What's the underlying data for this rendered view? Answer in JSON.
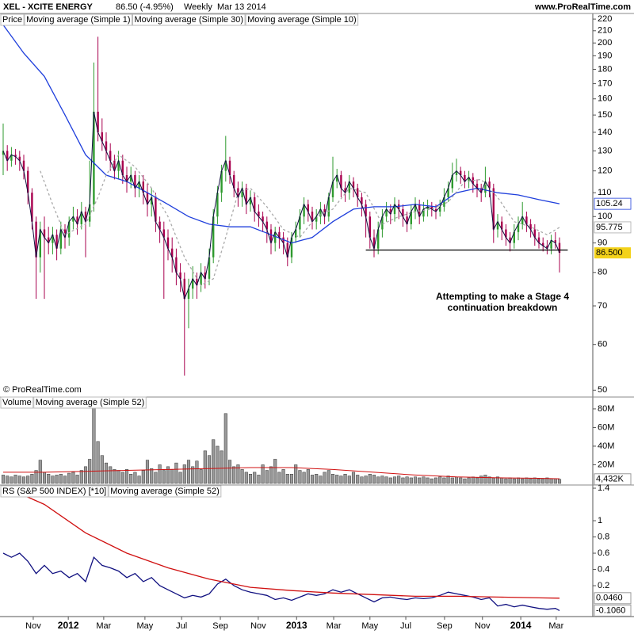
{
  "header": {
    "symbol": "XEL - XCITE ENERGY",
    "quote": "86.50 (-4.95%)",
    "period": "Weekly  Mar 13 2014",
    "site": "www.ProRealTime.com",
    "copyright": "© ProRealTime.com"
  },
  "chart_data": [
    {
      "type": "candlestick",
      "log_scale": true,
      "legend_label": "Price",
      "close_line": {
        "name": "Moving average (Simple 1)",
        "color": "#101040"
      },
      "up_color": "#2e9a2e",
      "down_color": "#a8004e",
      "ylim": [
        48.8,
        225
      ],
      "yticks": [
        50,
        60,
        70,
        80,
        90,
        100,
        110,
        120,
        130,
        140,
        150,
        160,
        170,
        180,
        190,
        200,
        210,
        220
      ],
      "open": [
        128,
        130,
        125,
        128,
        127,
        125,
        120,
        110,
        98,
        85,
        95,
        92,
        90,
        93,
        88,
        95,
        92,
        98,
        100,
        97,
        102,
        98,
        105,
        152,
        140,
        135,
        130,
        125,
        120,
        125,
        118,
        115,
        118,
        112,
        115,
        110,
        105,
        108,
        98,
        95,
        92,
        88,
        85,
        80,
        78,
        72,
        75,
        78,
        76,
        80,
        78,
        85,
        100,
        110,
        120,
        125,
        118,
        112,
        108,
        112,
        105,
        108,
        102,
        100,
        98,
        95,
        90,
        94,
        92,
        90,
        85,
        92,
        95,
        100,
        105,
        102,
        98,
        100,
        103,
        100,
        108,
        115,
        118,
        112,
        110,
        115,
        112,
        108,
        105,
        100,
        92,
        88,
        95,
        100,
        103,
        101,
        105,
        103,
        100,
        97,
        102,
        105,
        100,
        103,
        104,
        103,
        102,
        104,
        108,
        112,
        118,
        120,
        118,
        115,
        117,
        114,
        112,
        110,
        115,
        112,
        95,
        98,
        95,
        92,
        90,
        94,
        97,
        100,
        97,
        95,
        92,
        90,
        89,
        88,
        91,
        90
      ],
      "high": [
        145,
        133,
        132,
        131,
        130,
        128,
        122,
        112,
        100,
        98,
        100,
        96,
        96,
        95,
        98,
        97,
        100,
        104,
        103,
        106,
        104,
        125,
        185,
        205,
        148,
        140,
        134,
        128,
        130,
        128,
        122,
        122,
        120,
        118,
        118,
        114,
        112,
        110,
        100,
        98,
        95,
        92,
        88,
        83,
        80,
        78,
        82,
        80,
        83,
        82,
        88,
        103,
        113,
        123,
        138,
        127,
        120,
        115,
        115,
        114,
        111,
        110,
        105,
        102,
        100,
        97,
        96,
        96,
        94,
        92,
        94,
        98,
        103,
        108,
        107,
        104,
        103,
        106,
        105,
        110,
        127,
        121,
        120,
        115,
        118,
        117,
        114,
        110,
        107,
        102,
        95,
        98,
        103,
        106,
        105,
        108,
        107,
        105,
        102,
        105,
        108,
        107,
        106,
        107,
        106,
        105,
        107,
        112,
        115,
        124,
        126,
        122,
        120,
        120,
        119,
        116,
        114,
        122,
        117,
        114,
        101,
        100,
        97,
        94,
        97,
        100,
        106,
        102,
        99,
        97,
        94,
        92,
        91,
        93,
        94,
        92
      ],
      "low": [
        118,
        120,
        122,
        123,
        120,
        116,
        105,
        95,
        72,
        80,
        72,
        86,
        86,
        84,
        86,
        88,
        89,
        95,
        93,
        95,
        85,
        96,
        102,
        135,
        130,
        125,
        120,
        116,
        116,
        114,
        110,
        112,
        108,
        108,
        105,
        100,
        100,
        94,
        90,
        72,
        84,
        80,
        76,
        74,
        53,
        64,
        72,
        72,
        74,
        75,
        76,
        83,
        97,
        106,
        115,
        114,
        108,
        104,
        104,
        101,
        102,
        98,
        96,
        94,
        90,
        86,
        87,
        88,
        86,
        82,
        83,
        90,
        92,
        97,
        98,
        95,
        95,
        97,
        97,
        98,
        106,
        112,
        108,
        106,
        107,
        108,
        104,
        100,
        92,
        88,
        85,
        86,
        92,
        98,
        97,
        98,
        99,
        96,
        94,
        95,
        99,
        97,
        98,
        100,
        100,
        99,
        100,
        102,
        106,
        110,
        115,
        114,
        112,
        112,
        110,
        108,
        106,
        108,
        108,
        90,
        92,
        91,
        89,
        87,
        88,
        91,
        95,
        94,
        92,
        89,
        88,
        87,
        86,
        86,
        88,
        80
      ],
      "close": [
        130,
        125,
        128,
        127,
        125,
        120,
        110,
        98,
        85,
        95,
        92,
        90,
        93,
        88,
        95,
        92,
        98,
        100,
        97,
        102,
        98,
        105,
        152,
        140,
        135,
        130,
        125,
        120,
        125,
        118,
        115,
        118,
        112,
        115,
        110,
        105,
        108,
        98,
        95,
        92,
        88,
        85,
        80,
        78,
        72,
        75,
        78,
        76,
        80,
        78,
        85,
        100,
        110,
        120,
        125,
        118,
        112,
        108,
        112,
        105,
        108,
        102,
        100,
        98,
        95,
        90,
        94,
        92,
        90,
        85,
        92,
        95,
        100,
        105,
        102,
        98,
        100,
        103,
        100,
        108,
        115,
        118,
        112,
        110,
        115,
        112,
        108,
        105,
        100,
        92,
        88,
        95,
        100,
        103,
        101,
        105,
        103,
        100,
        97,
        102,
        105,
        100,
        103,
        104,
        103,
        102,
        104,
        108,
        112,
        118,
        120,
        118,
        115,
        117,
        114,
        112,
        110,
        115,
        112,
        95,
        98,
        95,
        92,
        90,
        94,
        97,
        100,
        97,
        95,
        92,
        90,
        89,
        88,
        91,
        90,
        86.5
      ],
      "close_last_label": "86.500",
      "series": [
        {
          "name": "Moving average (Simple 30)",
          "color": "#1f3fdc",
          "x": [
            0,
            5,
            10,
            15,
            20,
            25,
            30,
            35,
            40,
            45,
            50,
            55,
            60,
            65,
            70,
            75,
            80,
            85,
            90,
            95,
            100,
            105,
            110,
            115,
            120,
            125,
            130,
            135
          ],
          "values": [
            215,
            192,
            175,
            150,
            128,
            118,
            115,
            110,
            105,
            100,
            97,
            96,
            96,
            93,
            90,
            92,
            98,
            103,
            104,
            104,
            105,
            104,
            110,
            112,
            110,
            109,
            107,
            105.24
          ]
        },
        {
          "name": "Moving average (Simple 10)",
          "color": "#aaaaaa",
          "dashed": true,
          "x": [
            9,
            12,
            15,
            20,
            23,
            25,
            28,
            32,
            36,
            40,
            44,
            48,
            51,
            54,
            57,
            60,
            64,
            68,
            72,
            76,
            80,
            84,
            88,
            92,
            96,
            100,
            104,
            108,
            112,
            116,
            120,
            124,
            128,
            132,
            135
          ],
          "values": [
            120,
            105,
            93,
            97,
            108,
            118,
            128,
            122,
            112,
            100,
            85,
            76,
            78,
            92,
            110,
            112,
            104,
            95,
            92,
            100,
            103,
            112,
            110,
            97,
            100,
            102,
            103,
            106,
            115,
            116,
            108,
            98,
            96,
            93,
            95.775
          ]
        }
      ],
      "support": {
        "value": 87.5,
        "x": [
          88,
          137
        ]
      },
      "annotation": [
        "Attempting to make a Stage 4",
        "continuation breakdown"
      ]
    },
    {
      "type": "bar",
      "legend_label": "Volume",
      "color": "#9a9a9a",
      "ylim": [
        0,
        91
      ],
      "yticks": [
        {
          "value": 20,
          "label": "20M"
        },
        {
          "value": 40,
          "label": "40M"
        },
        {
          "value": 60,
          "label": "60M"
        },
        {
          "value": 80,
          "label": "80M"
        }
      ],
      "values": [
        9,
        8,
        7,
        9,
        8,
        7,
        8,
        10,
        14,
        25,
        12,
        10,
        8,
        9,
        10,
        8,
        11,
        12,
        9,
        14,
        18,
        26,
        82,
        45,
        30,
        22,
        18,
        15,
        14,
        12,
        15,
        10,
        12,
        8,
        14,
        25,
        16,
        12,
        20,
        14,
        18,
        15,
        22,
        12,
        20,
        25,
        18,
        24,
        15,
        35,
        30,
        47,
        40,
        35,
        75,
        25,
        18,
        20,
        15,
        12,
        10,
        12,
        9,
        20,
        14,
        18,
        26,
        12,
        15,
        10,
        10,
        20,
        14,
        12,
        15,
        9,
        10,
        8,
        12,
        14,
        10,
        9,
        8,
        10,
        8,
        12,
        9,
        7,
        8,
        10,
        9,
        7,
        8,
        7,
        6,
        7,
        8,
        6,
        7,
        6,
        7,
        6,
        7,
        6,
        5,
        6,
        7,
        6,
        8,
        6,
        7,
        6,
        5,
        6,
        7,
        6,
        8,
        9,
        7,
        6,
        7,
        6,
        5,
        6,
        5,
        6,
        5,
        6,
        5,
        6,
        5,
        5,
        6,
        5,
        5,
        4.432
      ],
      "last_label": "4,432K",
      "series": [
        {
          "name": "Moving average (Simple 52)",
          "color": "#d01010",
          "x": [
            0,
            10,
            20,
            30,
            40,
            50,
            60,
            70,
            80,
            90,
            100,
            110,
            120,
            130,
            135
          ],
          "values": [
            12,
            12,
            13,
            14,
            15,
            16,
            17,
            17,
            15,
            12,
            9,
            7,
            6,
            5.5,
            5
          ]
        }
      ]
    },
    {
      "type": "line",
      "ylim": [
        -0.18,
        1.41
      ],
      "yticks": [
        0.2,
        0.4,
        0.6,
        0.8,
        1,
        1.4
      ],
      "series": [
        {
          "name": "RS (S&P 500 INDEX) [*10]",
          "color": "#101080",
          "x": [
            0,
            2,
            4,
            6,
            8,
            10,
            12,
            14,
            16,
            18,
            20,
            22,
            24,
            26,
            28,
            30,
            32,
            34,
            36,
            38,
            40,
            42,
            44,
            46,
            48,
            50,
            52,
            54,
            56,
            58,
            60,
            62,
            64,
            66,
            68,
            70,
            72,
            74,
            76,
            78,
            80,
            82,
            84,
            86,
            88,
            90,
            92,
            94,
            96,
            98,
            100,
            102,
            104,
            106,
            108,
            110,
            112,
            114,
            116,
            118,
            120,
            122,
            124,
            126,
            128,
            130,
            132,
            134,
            135
          ],
          "values": [
            0.6,
            0.55,
            0.6,
            0.5,
            0.35,
            0.45,
            0.35,
            0.38,
            0.3,
            0.35,
            0.25,
            0.55,
            0.45,
            0.42,
            0.38,
            0.3,
            0.35,
            0.25,
            0.3,
            0.2,
            0.15,
            0.1,
            0.05,
            0.08,
            0.06,
            0.1,
            0.22,
            0.28,
            0.2,
            0.15,
            0.12,
            0.1,
            0.08,
            0.03,
            0.05,
            0.02,
            0.06,
            0.1,
            0.08,
            0.1,
            0.15,
            0.12,
            0.15,
            0.1,
            0.05,
            0.0,
            0.05,
            0.06,
            0.04,
            0.03,
            0.05,
            0.04,
            0.05,
            0.08,
            0.12,
            0.1,
            0.08,
            0.06,
            0.03,
            0.05,
            -0.05,
            -0.03,
            -0.06,
            -0.04,
            -0.06,
            -0.08,
            -0.09,
            -0.08,
            -0.106
          ],
          "last_label": "-0.1060"
        },
        {
          "name": "Moving average (Simple 52)",
          "color": "#d01010",
          "x": [
            2,
            10,
            20,
            30,
            40,
            50,
            60,
            70,
            80,
            90,
            100,
            110,
            120,
            130,
            135
          ],
          "values": [
            1.38,
            1.2,
            0.85,
            0.6,
            0.42,
            0.28,
            0.18,
            0.14,
            0.11,
            0.09,
            0.07,
            0.07,
            0.06,
            0.05,
            0.046
          ],
          "last_label": "0.0460"
        }
      ],
      "xticks": [
        {
          "value": 7.3,
          "label": "Nov"
        },
        {
          "value": 15.8,
          "label": "2012"
        },
        {
          "value": 24.4,
          "label": "Mar"
        },
        {
          "value": 34.4,
          "label": "May"
        },
        {
          "value": 43.3,
          "label": "Jul"
        },
        {
          "value": 52.7,
          "label": "Sep"
        },
        {
          "value": 61.9,
          "label": "Nov"
        },
        {
          "value": 71.2,
          "label": "2013"
        },
        {
          "value": 80.2,
          "label": "Mar"
        },
        {
          "value": 89,
          "label": "May"
        },
        {
          "value": 97.7,
          "label": "Jul"
        },
        {
          "value": 107.1,
          "label": "Sep"
        },
        {
          "value": 116.3,
          "label": "Nov"
        },
        {
          "value": 125.6,
          "label": "2014"
        },
        {
          "value": 134.2,
          "label": "Mar"
        }
      ]
    }
  ]
}
